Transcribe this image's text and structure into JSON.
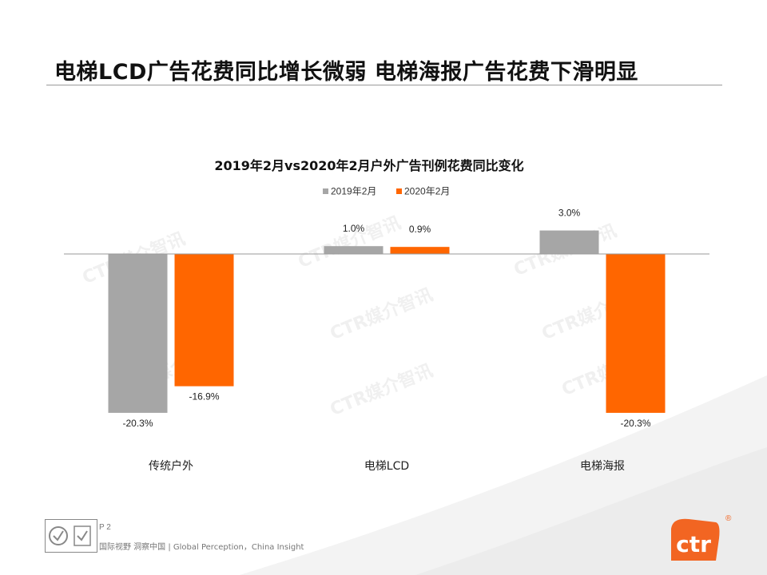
{
  "slide": {
    "title": "电梯LCD广告花费同比增长微弱 电梯海报广告花费下滑明显",
    "page_number": "P 2",
    "footer_tagline": "国际视野 洞察中国 | Global Perception，China Insight",
    "brand_text": "ctr",
    "brand_mark": "®",
    "watermark_text": "CTR媒介智讯",
    "colors": {
      "brand": "#f26522",
      "gray": "#a6a6a6",
      "accent": "#ff6600"
    }
  },
  "chart_data": {
    "type": "bar",
    "title": "2019年2月vs2020年2月户外广告刊例花费同比变化",
    "categories": [
      "传统户外",
      "电梯LCD",
      "电梯海报"
    ],
    "series": [
      {
        "name": "2019年2月",
        "values": [
          -20.3,
          1.0,
          3.0
        ],
        "labels": [
          "-20.3%",
          "1.0%",
          "3.0%"
        ],
        "color": "#a6a6a6"
      },
      {
        "name": "2020年2月",
        "values": [
          -16.9,
          0.9,
          -20.3
        ],
        "labels": [
          "-16.9%",
          "0.9%",
          "-20.3%"
        ],
        "color": "#ff6600"
      }
    ],
    "ylim": [
      -20.3,
      3.0
    ],
    "legend_position": "top-center",
    "grid": false
  }
}
